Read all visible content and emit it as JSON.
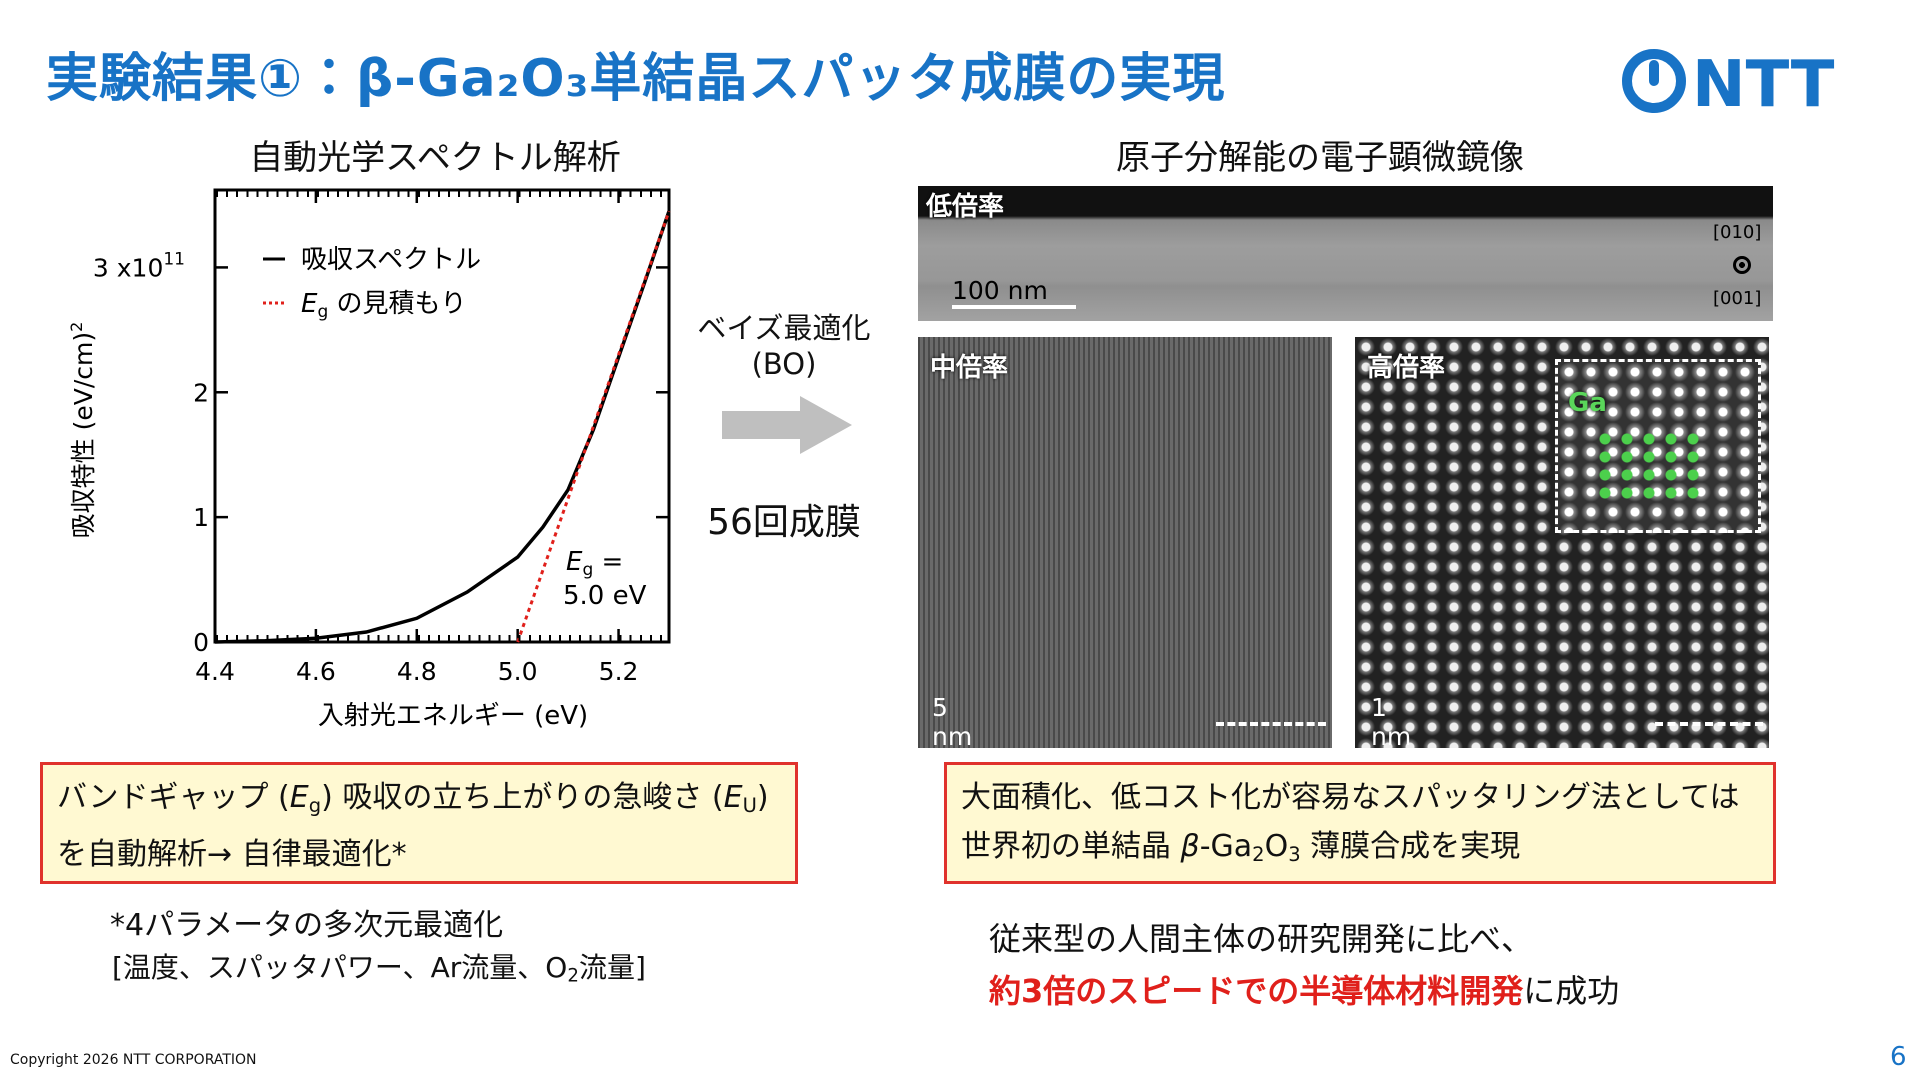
{
  "header": {
    "title": "実験結果①：β-Ga₂O₃単結晶スパッタ成膜の実現",
    "logo": "NTT"
  },
  "left_panel": {
    "heading": "自動光学スペクトル解析"
  },
  "chart": {
    "type": "line",
    "x_label": "入射光エネルギー (eV)",
    "y_label": "吸収特性  (eV/cm)",
    "y_label_sup": "2",
    "xlim": [
      4.4,
      5.3
    ],
    "ylim": [
      0,
      3.62
    ],
    "xticks": [
      4.4,
      4.6,
      4.8,
      {
        "value": 5,
        "label": "5.0"
      },
      5.2
    ],
    "yticks": [
      0,
      1,
      2,
      {
        "value": 3,
        "label": "3 x10",
        "label_sup": "11"
      }
    ],
    "series": [
      {
        "name": "吸収スペクトル",
        "color": "#000000",
        "x": [
          4.4,
          4.5,
          4.6,
          4.7,
          4.8,
          4.9,
          5.0,
          5.05,
          5.1,
          5.15,
          5.2,
          5.25,
          5.3
        ],
        "values": [
          0,
          0.01,
          0.03,
          0.08,
          0.19,
          0.4,
          0.68,
          0.92,
          1.22,
          1.7,
          2.28,
          2.86,
          3.45
        ]
      },
      {
        "name_symbol": "E",
        "name_sub": "g",
        "name": "の見積もり",
        "color": "#e0201b",
        "x": [
          5.0,
          5.3
        ],
        "values": [
          0,
          3.45
        ]
      }
    ],
    "annotation": {
      "symbol": "E",
      "sub": "g",
      "eq": " =",
      "value_text": "5.0 eV"
    }
  },
  "middle": {
    "method": "ベイズ最適化",
    "method_abbr": "(BO)",
    "runs": "56回成膜"
  },
  "right_panel": {
    "heading": "原子分解能の電子顕微鏡像",
    "low": {
      "label": "低倍率",
      "scale": "100 nm",
      "dir_top": "[010]",
      "dir_bottom": "[001]"
    },
    "mid": {
      "label": "中倍率",
      "scale": "5 nm"
    },
    "high": {
      "label": "高倍率",
      "scale": "1 nm",
      "atom": "Ga"
    }
  },
  "left_box": {
    "line1": [
      "バンドギャップ (",
      "E",
      "g",
      ") 吸収の立ち上がりの急峻さ (",
      "E",
      "U",
      ")"
    ],
    "line2": "を自動解析→ 自律最適化*"
  },
  "right_box": {
    "line1": "大面積化、低コスト化が容易なスパッタリング法としては",
    "line2": [
      "世界初の単結晶 ",
      "β",
      "-Ga",
      "2",
      "O",
      "3",
      " 薄膜合成を実現"
    ]
  },
  "footnote": {
    "line1": "*4パラメータの多次元最適化",
    "line2": [
      "[温度、スパッタパワー、Ar流量、O",
      "2",
      "流量]"
    ]
  },
  "conclusion": {
    "line1": "従来型の人間主体の研究開発に比べ、",
    "line2_highlight": "約3倍のスピードでの半導体材料開発",
    "line2_rest": "に成功"
  },
  "footer": {
    "copyright": "Copyright 2026 NTT CORPORATION",
    "page": "6"
  }
}
